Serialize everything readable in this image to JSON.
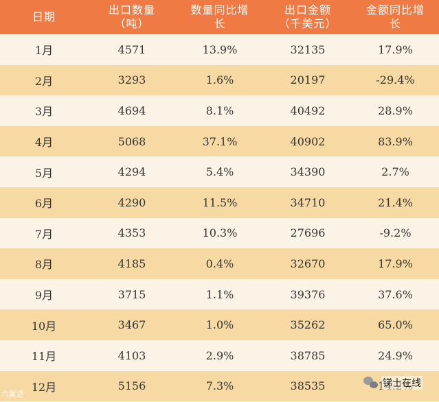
{
  "table": {
    "headers": [
      {
        "line1": "日期",
        "line2": ""
      },
      {
        "line1": "出口数量",
        "line2": "（吨）"
      },
      {
        "line1": "数量同比增",
        "line2": "长"
      },
      {
        "line1": "出口金额",
        "line2": "（千美元）"
      },
      {
        "line1": "金额同比增",
        "line2": "长"
      }
    ],
    "rows": [
      [
        "1月",
        "4571",
        "13.9%",
        "32135",
        "17.9%"
      ],
      [
        "2月",
        "3293",
        "1.6%",
        "20197",
        "-29.4%"
      ],
      [
        "3月",
        "4694",
        "8.1%",
        "40492",
        "28.9%"
      ],
      [
        "4月",
        "5068",
        "37.1%",
        "40902",
        "83.9%"
      ],
      [
        "5月",
        "4294",
        "5.4%",
        "34390",
        "2.7%"
      ],
      [
        "6月",
        "4290",
        "11.5%",
        "34710",
        "21.4%"
      ],
      [
        "7月",
        "4353",
        "10.3%",
        "27696",
        "-9.2%"
      ],
      [
        "8月",
        "4185",
        "0.4%",
        "32670",
        "17.9%"
      ],
      [
        "9月",
        "3715",
        "1.1%",
        "39376",
        "37.6%"
      ],
      [
        "10月",
        "3467",
        "1.0%",
        "35262",
        "65.0%"
      ],
      [
        "11月",
        "4103",
        "2.9%",
        "38785",
        "24.9%"
      ],
      [
        "12月",
        "5156",
        "7.3%",
        "38535",
        "14.2%"
      ]
    ]
  },
  "watermarks": {
    "bottom_left": "六氟话",
    "bottom_right": "锑士在线"
  },
  "colors": {
    "header_bg": "#f07a43",
    "row_even_bg": "#f6d9a3",
    "row_odd_bg": "#fbf3e6"
  }
}
